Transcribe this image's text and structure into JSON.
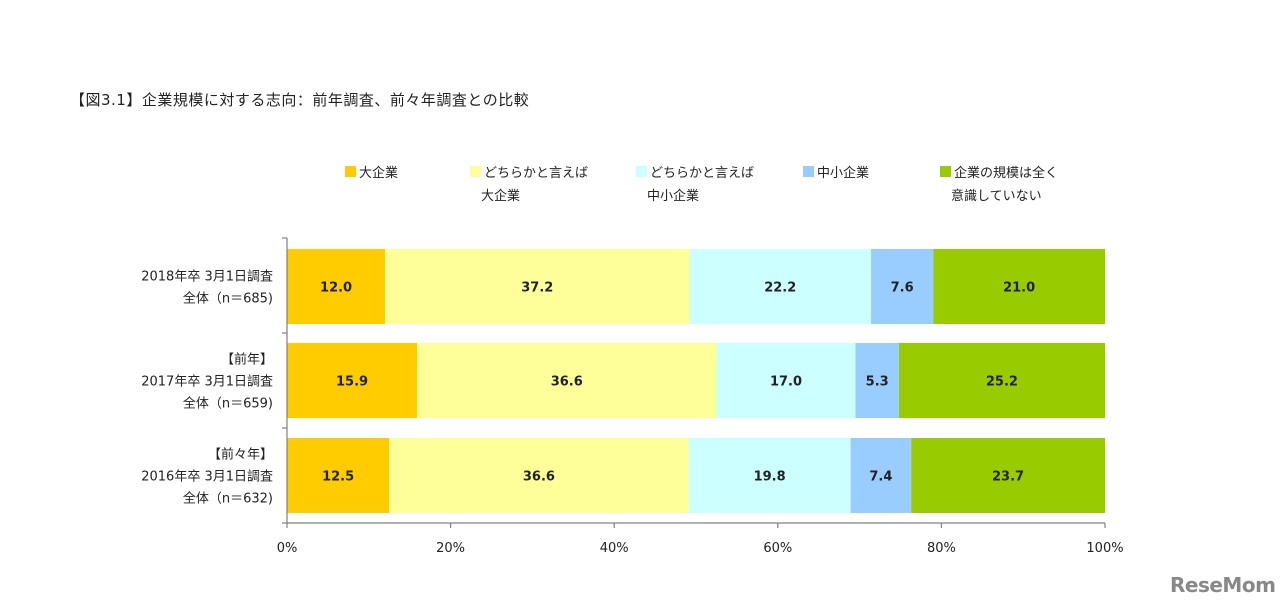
{
  "title": "【図3.1】企業規模に対する志向：前年調査、前々年調査との比較",
  "watermark": "ReseMom",
  "chart_data": {
    "type": "bar",
    "orientation": "horizontal",
    "stacked": true,
    "percent": true,
    "categories": [
      [
        "2018年卒 3月1日調査",
        "全体（n＝685)"
      ],
      [
        "【前年】",
        "2017年卒 3月1日調査",
        "全体（n＝659)"
      ],
      [
        "【前々年】",
        "2016年卒 3月1日調査",
        "全体（n＝632)"
      ]
    ],
    "series": [
      {
        "name": "大企業",
        "legend_lines": [
          "大企業"
        ],
        "color": "#FFCC00",
        "values": [
          12.0,
          15.9,
          12.5
        ]
      },
      {
        "name": "どちらかと言えば大企業",
        "legend_lines": [
          "どちらかと言えば",
          "大企業"
        ],
        "color": "#FFFF99",
        "values": [
          37.2,
          36.6,
          36.6
        ]
      },
      {
        "name": "どちらかと言えば中小企業",
        "legend_lines": [
          "どちらかと言えば",
          "中小企業"
        ],
        "color": "#CCFFFF",
        "values": [
          22.2,
          17.0,
          19.8
        ]
      },
      {
        "name": "中小企業",
        "legend_lines": [
          "中小企業"
        ],
        "color": "#99CCFF",
        "values": [
          7.6,
          5.3,
          7.4
        ]
      },
      {
        "name": "企業の規模は全く意識していない",
        "legend_lines": [
          "企業の規模は全く",
          "意識していない"
        ],
        "color": "#99CC00",
        "values": [
          21.0,
          25.2,
          23.7
        ]
      }
    ],
    "xlim": [
      0,
      100
    ],
    "xticks": [
      "0%",
      "20%",
      "40%",
      "60%",
      "80%",
      "100%"
    ],
    "legend_position": "top",
    "grid": false
  }
}
